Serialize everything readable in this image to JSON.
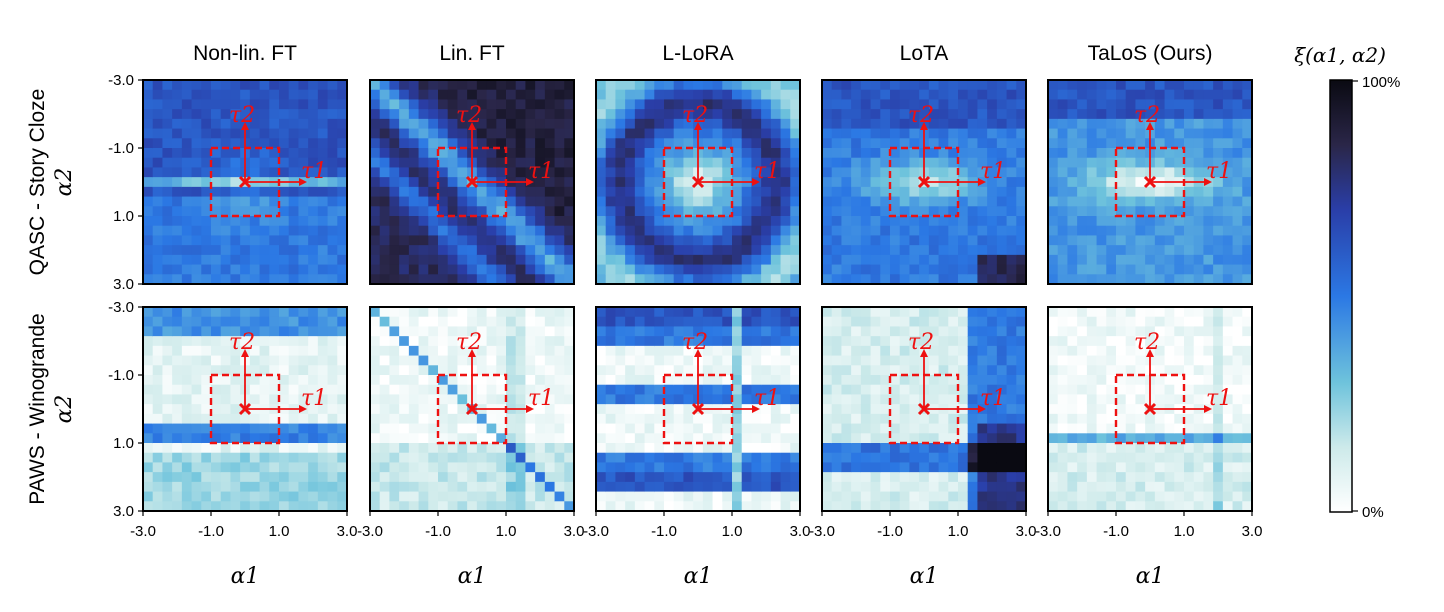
{
  "chart_data": {
    "type": "heatmap",
    "columns": [
      {
        "title": "Non-lin. FT"
      },
      {
        "title": "Lin. FT"
      },
      {
        "title": "L-LoRA"
      },
      {
        "title": "LoTA"
      },
      {
        "title": "TaLoS (Ours)"
      }
    ],
    "rows": [
      {
        "label": "QASC - Story Cloze",
        "ylabel": "α2"
      },
      {
        "label": "PAWS - Winogrande",
        "ylabel": "α2"
      }
    ],
    "xlabel": "α1",
    "ylabel": "α2",
    "x_ticks": [
      "-3.0",
      "-1.0",
      "1.0",
      "3.0"
    ],
    "y_ticks": [
      "-3.0",
      "-1.0",
      "1.0",
      "3.0"
    ],
    "xlim": [
      -3.0,
      3.0
    ],
    "ylim": [
      -3.0,
      3.0
    ],
    "grid_size": 21,
    "colorbar": {
      "label": "ξ(α1, α2)",
      "max_label": "100%",
      "min_label": "0%",
      "range": [
        0,
        100
      ]
    },
    "annotations": {
      "tau1": "τ1",
      "tau2": "τ2",
      "region": [
        -1.0,
        1.0
      ]
    },
    "colors": {
      "low": "#ffffff",
      "mid": "#2b78e4",
      "high": "#0a0a12",
      "annotation": "#ee1111"
    }
  }
}
